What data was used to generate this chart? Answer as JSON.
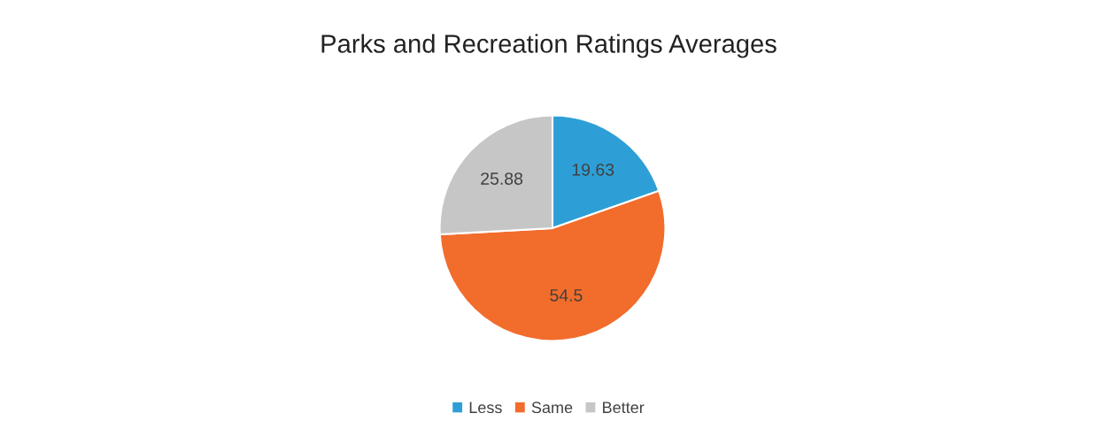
{
  "chart_data": {
    "type": "pie",
    "title": "Parks and Recreation Ratings Averages",
    "categories": [
      "Less",
      "Same",
      "Better"
    ],
    "values": [
      19.63,
      54.5,
      25.88
    ],
    "colors": [
      "#2e9fd6",
      "#f26c2c",
      "#c6c6c6"
    ],
    "data_labels": true,
    "legend": "bottom"
  }
}
